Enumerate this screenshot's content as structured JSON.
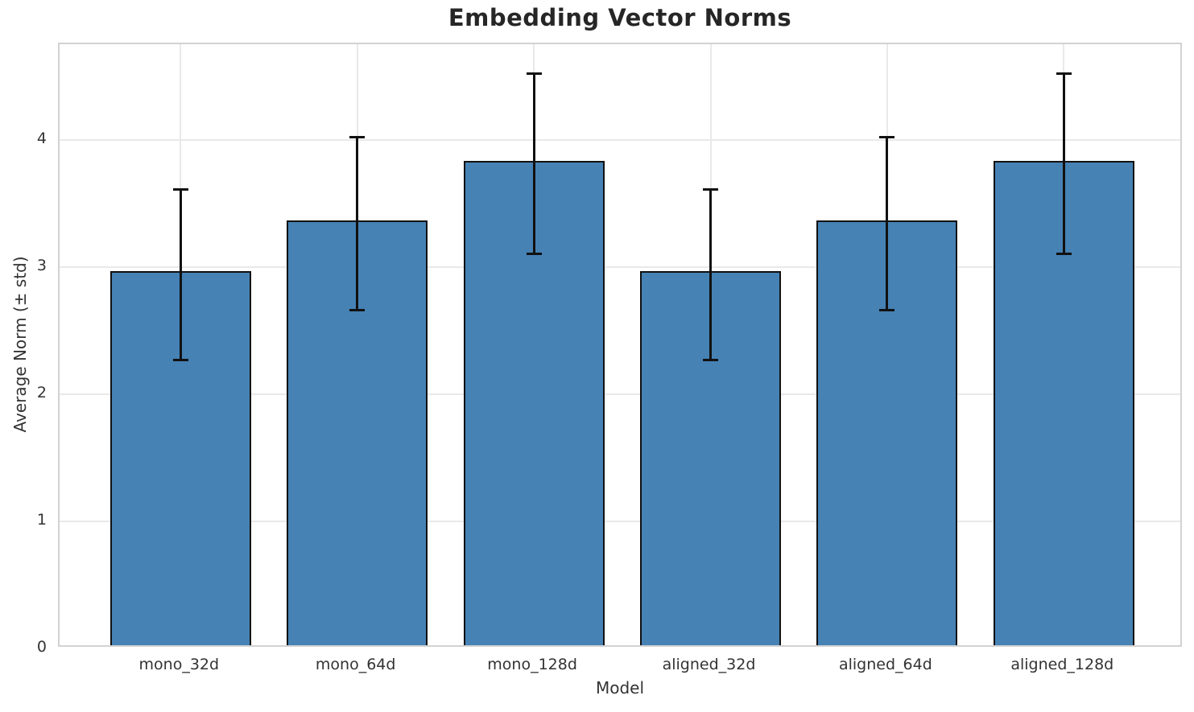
{
  "chart_data": {
    "type": "bar",
    "title": "Embedding Vector Norms",
    "xlabel": "Model",
    "ylabel": "Average Norm (± std)",
    "categories": [
      "mono_32d",
      "mono_64d",
      "mono_128d",
      "aligned_32d",
      "aligned_64d",
      "aligned_128d"
    ],
    "values": [
      2.94,
      3.34,
      3.81,
      2.94,
      3.34,
      3.81
    ],
    "errors": [
      0.67,
      0.68,
      0.71,
      0.67,
      0.68,
      0.71
    ],
    "yticks": [
      0,
      1,
      2,
      3,
      4
    ],
    "ylim": [
      0,
      4.75
    ],
    "grid": "both",
    "legend": "none",
    "colors": {
      "bar_fill": "#4682B4",
      "bar_edge": "#111111",
      "error_bar": "#111111",
      "gridline": "#e9e9e9",
      "spine": "#d2d2d2",
      "tick_text": "#333333",
      "title_text": "#262626"
    }
  }
}
